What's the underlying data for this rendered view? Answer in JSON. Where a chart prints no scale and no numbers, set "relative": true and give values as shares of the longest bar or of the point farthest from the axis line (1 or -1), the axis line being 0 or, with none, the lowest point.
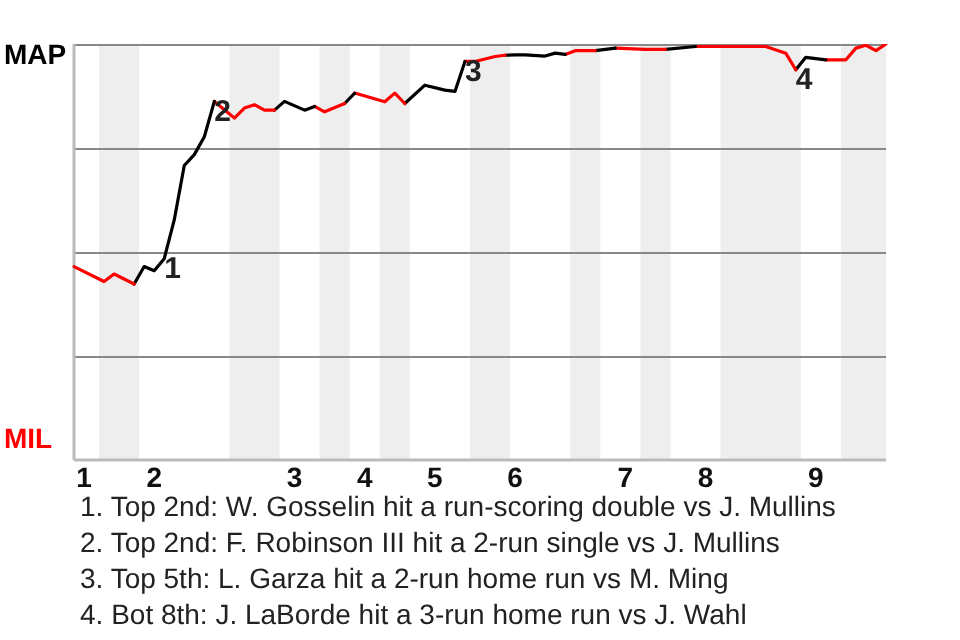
{
  "chart_data": {
    "type": "line",
    "relative": true,
    "categories": [
      null,
      "1",
      null,
      null,
      null,
      null,
      null,
      null,
      "2",
      null,
      null,
      null,
      null,
      null,
      null,
      null,
      null,
      null,
      null,
      null,
      null,
      null,
      "3",
      null,
      null,
      null,
      null,
      null,
      null,
      "4",
      null,
      null,
      null,
      null,
      null,
      null,
      "5",
      null,
      null,
      null,
      null,
      null,
      null,
      null,
      "6",
      null,
      null,
      null,
      null,
      null,
      null,
      null,
      null,
      null,
      null,
      "7",
      null,
      null,
      null,
      null,
      null,
      null,
      null,
      "8",
      null,
      null,
      null,
      null,
      null,
      null,
      null,
      null,
      null,
      null,
      "9",
      null,
      null,
      null,
      null,
      null,
      null,
      null
    ],
    "series": [
      {
        "color": "#ff0000",
        "values": [
          0.465,
          null,
          null,
          0.429,
          0.447,
          null,
          0.423,
          null,
          null,
          null,
          null,
          null,
          null,
          null,
          null,
          null,
          null,
          null,
          null,
          null,
          null,
          null,
          null,
          null,
          null,
          null,
          null,
          null,
          null,
          null,
          null,
          null,
          null,
          null,
          null,
          null,
          null,
          null,
          null,
          null,
          null,
          null,
          null,
          null,
          null,
          null,
          null,
          null,
          null,
          null,
          null,
          null,
          null,
          null,
          null,
          null,
          null,
          null,
          null,
          null,
          null,
          null,
          null,
          null,
          null,
          null,
          null,
          null,
          null,
          null,
          null,
          null,
          null,
          null,
          null,
          null,
          null,
          null,
          null,
          null,
          null,
          null
        ]
      },
      {
        "color": "#000000",
        "values": [
          null,
          null,
          null,
          null,
          null,
          null,
          0.423,
          0.465,
          0.455,
          0.484,
          0.577,
          0.708,
          0.734,
          0.777,
          0.862,
          null,
          null,
          null,
          null,
          null,
          null,
          null,
          null,
          null,
          null,
          null,
          null,
          null,
          null,
          null,
          null,
          null,
          null,
          null,
          null,
          null,
          null,
          null,
          null,
          null,
          null,
          null,
          null,
          null,
          null,
          null,
          null,
          null,
          null,
          null,
          null,
          null,
          null,
          null,
          null,
          null,
          null,
          null,
          null,
          null,
          null,
          null,
          null,
          null,
          null,
          null,
          null,
          null,
          null,
          null,
          null,
          null,
          null,
          null,
          null,
          null,
          null,
          null,
          null,
          null,
          null,
          null
        ]
      },
      {
        "color": "#ff0000",
        "values": [
          null,
          null,
          null,
          null,
          null,
          null,
          null,
          null,
          null,
          null,
          null,
          null,
          null,
          null,
          0.862,
          null,
          0.822,
          0.846,
          0.854,
          0.841,
          0.841,
          null,
          null,
          null,
          null,
          null,
          null,
          null,
          null,
          null,
          null,
          null,
          null,
          null,
          null,
          null,
          null,
          null,
          null,
          null,
          null,
          null,
          null,
          null,
          null,
          null,
          null,
          null,
          null,
          null,
          null,
          null,
          null,
          null,
          null,
          null,
          null,
          null,
          null,
          null,
          null,
          null,
          null,
          null,
          null,
          null,
          null,
          null,
          null,
          null,
          null,
          null,
          null,
          null,
          null,
          null,
          null,
          null,
          null,
          null,
          null,
          null
        ]
      },
      {
        "color": "#000000",
        "values": [
          null,
          null,
          null,
          null,
          null,
          null,
          null,
          null,
          null,
          null,
          null,
          null,
          null,
          null,
          null,
          null,
          null,
          null,
          null,
          null,
          0.841,
          0.862,
          null,
          0.841,
          0.85,
          null,
          null,
          null,
          null,
          null,
          null,
          null,
          null,
          null,
          null,
          null,
          null,
          null,
          null,
          null,
          null,
          null,
          null,
          null,
          null,
          null,
          null,
          null,
          null,
          null,
          null,
          null,
          null,
          null,
          null,
          null,
          null,
          null,
          null,
          null,
          null,
          null,
          null,
          null,
          null,
          null,
          null,
          null,
          null,
          null,
          null,
          null,
          null,
          null,
          null,
          null,
          null,
          null,
          null,
          null,
          null,
          null
        ]
      },
      {
        "color": "#ff0000",
        "values": [
          null,
          null,
          null,
          null,
          null,
          null,
          null,
          null,
          null,
          null,
          null,
          null,
          null,
          null,
          null,
          null,
          null,
          null,
          null,
          null,
          null,
          null,
          null,
          null,
          0.85,
          0.837,
          null,
          0.857,
          null,
          null,
          null,
          null,
          null,
          null,
          null,
          null,
          null,
          null,
          null,
          null,
          null,
          null,
          null,
          null,
          null,
          null,
          null,
          null,
          null,
          null,
          null,
          null,
          null,
          null,
          null,
          null,
          null,
          null,
          null,
          null,
          null,
          null,
          null,
          null,
          null,
          null,
          null,
          null,
          null,
          null,
          null,
          null,
          null,
          null,
          null,
          null,
          null,
          null,
          null,
          null,
          null,
          null
        ]
      },
      {
        "color": "#000000",
        "values": [
          null,
          null,
          null,
          null,
          null,
          null,
          null,
          null,
          null,
          null,
          null,
          null,
          null,
          null,
          null,
          null,
          null,
          null,
          null,
          null,
          null,
          null,
          null,
          null,
          null,
          null,
          null,
          0.857,
          0.882,
          null,
          null,
          null,
          null,
          null,
          null,
          null,
          null,
          null,
          null,
          null,
          null,
          null,
          null,
          null,
          null,
          null,
          null,
          null,
          null,
          null,
          null,
          null,
          null,
          null,
          null,
          null,
          null,
          null,
          null,
          null,
          null,
          null,
          null,
          null,
          null,
          null,
          null,
          null,
          null,
          null,
          null,
          null,
          null,
          null,
          null,
          null,
          null,
          null,
          null,
          null,
          null,
          null
        ]
      },
      {
        "color": "#ff0000",
        "values": [
          null,
          null,
          null,
          null,
          null,
          null,
          null,
          null,
          null,
          null,
          null,
          null,
          null,
          null,
          null,
          null,
          null,
          null,
          null,
          null,
          null,
          null,
          null,
          null,
          null,
          null,
          null,
          null,
          0.882,
          null,
          null,
          0.861,
          0.882,
          0.857,
          null,
          null,
          null,
          null,
          null,
          null,
          null,
          null,
          null,
          null,
          null,
          null,
          null,
          null,
          null,
          null,
          null,
          null,
          null,
          null,
          null,
          null,
          null,
          null,
          null,
          null,
          null,
          null,
          null,
          null,
          null,
          null,
          null,
          null,
          null,
          null,
          null,
          null,
          null,
          null,
          null,
          null,
          null,
          null,
          null,
          null,
          null,
          null
        ]
      },
      {
        "color": "#000000",
        "values": [
          null,
          null,
          null,
          null,
          null,
          null,
          null,
          null,
          null,
          null,
          null,
          null,
          null,
          null,
          null,
          null,
          null,
          null,
          null,
          null,
          null,
          null,
          null,
          null,
          null,
          null,
          null,
          null,
          null,
          null,
          null,
          null,
          null,
          0.857,
          null,
          0.901,
          null,
          0.889,
          0.886,
          0.958,
          null,
          null,
          null,
          null,
          null,
          null,
          null,
          null,
          null,
          null,
          null,
          null,
          null,
          null,
          null,
          null,
          null,
          null,
          null,
          null,
          null,
          null,
          null,
          null,
          null,
          null,
          null,
          null,
          null,
          null,
          null,
          null,
          null,
          null,
          null,
          null,
          null,
          null,
          null,
          null,
          null,
          null
        ]
      },
      {
        "color": "#ff0000",
        "values": [
          null,
          null,
          null,
          null,
          null,
          null,
          null,
          null,
          null,
          null,
          null,
          null,
          null,
          null,
          null,
          null,
          null,
          null,
          null,
          null,
          null,
          null,
          null,
          null,
          null,
          null,
          null,
          null,
          null,
          null,
          null,
          null,
          null,
          null,
          null,
          null,
          null,
          null,
          null,
          0.958,
          0.958,
          null,
          0.97,
          0.973,
          null,
          null,
          null,
          null,
          null,
          null,
          null,
          null,
          null,
          null,
          null,
          null,
          null,
          null,
          null,
          null,
          null,
          null,
          null,
          null,
          null,
          null,
          null,
          null,
          null,
          null,
          null,
          null,
          null,
          null,
          null,
          null,
          null,
          null,
          null,
          null,
          null,
          null
        ]
      },
      {
        "color": "#000000",
        "values": [
          null,
          null,
          null,
          null,
          null,
          null,
          null,
          null,
          null,
          null,
          null,
          null,
          null,
          null,
          null,
          null,
          null,
          null,
          null,
          null,
          null,
          null,
          null,
          null,
          null,
          null,
          null,
          null,
          null,
          null,
          null,
          null,
          null,
          null,
          null,
          null,
          null,
          null,
          null,
          null,
          null,
          null,
          null,
          0.973,
          0.974,
          0.974,
          null,
          0.971,
          0.978,
          0.975,
          null,
          null,
          null,
          null,
          null,
          null,
          null,
          null,
          null,
          null,
          null,
          null,
          null,
          null,
          null,
          null,
          null,
          null,
          null,
          null,
          null,
          null,
          null,
          null,
          null,
          null,
          null,
          null,
          null,
          null,
          null,
          null
        ]
      },
      {
        "color": "#ff0000",
        "values": [
          null,
          null,
          null,
          null,
          null,
          null,
          null,
          null,
          null,
          null,
          null,
          null,
          null,
          null,
          null,
          null,
          null,
          null,
          null,
          null,
          null,
          null,
          null,
          null,
          null,
          null,
          null,
          null,
          null,
          null,
          null,
          null,
          null,
          null,
          null,
          null,
          null,
          null,
          null,
          null,
          null,
          null,
          null,
          null,
          null,
          null,
          null,
          null,
          null,
          0.975,
          0.984,
          null,
          0.984,
          null,
          null,
          null,
          null,
          null,
          null,
          null,
          null,
          null,
          null,
          null,
          null,
          null,
          null,
          null,
          null,
          null,
          null,
          null,
          null,
          null,
          null,
          null,
          null,
          null,
          null,
          null,
          null,
          null
        ]
      },
      {
        "color": "#000000",
        "values": [
          null,
          null,
          null,
          null,
          null,
          null,
          null,
          null,
          null,
          null,
          null,
          null,
          null,
          null,
          null,
          null,
          null,
          null,
          null,
          null,
          null,
          null,
          null,
          null,
          null,
          null,
          null,
          null,
          null,
          null,
          null,
          null,
          null,
          null,
          null,
          null,
          null,
          null,
          null,
          null,
          null,
          null,
          null,
          null,
          null,
          null,
          null,
          null,
          null,
          null,
          null,
          null,
          0.984,
          null,
          0.99,
          null,
          null,
          null,
          null,
          null,
          null,
          null,
          null,
          null,
          null,
          null,
          null,
          null,
          null,
          null,
          null,
          null,
          null,
          null,
          null,
          null,
          null,
          null,
          null,
          null,
          null,
          null
        ]
      },
      {
        "color": "#ff0000",
        "values": [
          null,
          null,
          null,
          null,
          null,
          null,
          null,
          null,
          null,
          null,
          null,
          null,
          null,
          null,
          null,
          null,
          null,
          null,
          null,
          null,
          null,
          null,
          null,
          null,
          null,
          null,
          null,
          null,
          null,
          null,
          null,
          null,
          null,
          null,
          null,
          null,
          null,
          null,
          null,
          null,
          null,
          null,
          null,
          null,
          null,
          null,
          null,
          null,
          null,
          null,
          null,
          null,
          null,
          null,
          0.99,
          null,
          null,
          0.987,
          null,
          0.987,
          null,
          null,
          null,
          null,
          null,
          null,
          null,
          null,
          null,
          null,
          null,
          null,
          null,
          null,
          null,
          null,
          null,
          null,
          null,
          null,
          null,
          null
        ]
      },
      {
        "color": "#000000",
        "values": [
          null,
          null,
          null,
          null,
          null,
          null,
          null,
          null,
          null,
          null,
          null,
          null,
          null,
          null,
          null,
          null,
          null,
          null,
          null,
          null,
          null,
          null,
          null,
          null,
          null,
          null,
          null,
          null,
          null,
          null,
          null,
          null,
          null,
          null,
          null,
          null,
          null,
          null,
          null,
          null,
          null,
          null,
          null,
          null,
          null,
          null,
          null,
          null,
          null,
          null,
          null,
          null,
          null,
          null,
          null,
          null,
          null,
          null,
          null,
          0.987,
          null,
          null,
          0.994,
          null,
          null,
          null,
          null,
          null,
          null,
          null,
          null,
          null,
          null,
          null,
          null,
          null,
          null,
          null,
          null,
          null,
          null,
          null
        ]
      },
      {
        "color": "#ff0000",
        "values": [
          null,
          null,
          null,
          null,
          null,
          null,
          null,
          null,
          null,
          null,
          null,
          null,
          null,
          null,
          null,
          null,
          null,
          null,
          null,
          null,
          null,
          null,
          null,
          null,
          null,
          null,
          null,
          null,
          null,
          null,
          null,
          null,
          null,
          null,
          null,
          null,
          null,
          null,
          null,
          null,
          null,
          null,
          null,
          null,
          null,
          null,
          null,
          null,
          null,
          null,
          null,
          null,
          null,
          null,
          null,
          null,
          null,
          null,
          null,
          null,
          null,
          null,
          0.994,
          null,
          null,
          0.994,
          null,
          null,
          null,
          0.994,
          null,
          0.978,
          0.938,
          null,
          null,
          null,
          null,
          null,
          null,
          null,
          null,
          null
        ]
      },
      {
        "color": "#000000",
        "values": [
          null,
          null,
          null,
          null,
          null,
          null,
          null,
          null,
          null,
          null,
          null,
          null,
          null,
          null,
          null,
          null,
          null,
          null,
          null,
          null,
          null,
          null,
          null,
          null,
          null,
          null,
          null,
          null,
          null,
          null,
          null,
          null,
          null,
          null,
          null,
          null,
          null,
          null,
          null,
          null,
          null,
          null,
          null,
          null,
          null,
          null,
          null,
          null,
          null,
          null,
          null,
          null,
          null,
          null,
          null,
          null,
          null,
          null,
          null,
          null,
          null,
          null,
          null,
          null,
          null,
          null,
          null,
          null,
          null,
          null,
          null,
          null,
          0.938,
          0.968,
          null,
          0.962,
          null,
          null,
          null,
          null,
          null,
          null
        ]
      },
      {
        "color": "#ff0000",
        "values": [
          null,
          null,
          null,
          null,
          null,
          null,
          null,
          null,
          null,
          null,
          null,
          null,
          null,
          null,
          null,
          null,
          null,
          null,
          null,
          null,
          null,
          null,
          null,
          null,
          null,
          null,
          null,
          null,
          null,
          null,
          null,
          null,
          null,
          null,
          null,
          null,
          null,
          null,
          null,
          null,
          null,
          null,
          null,
          null,
          null,
          null,
          null,
          null,
          null,
          null,
          null,
          null,
          null,
          null,
          null,
          null,
          null,
          null,
          null,
          null,
          null,
          null,
          null,
          null,
          null,
          null,
          null,
          null,
          null,
          null,
          null,
          null,
          null,
          null,
          null,
          0.962,
          null,
          0.962,
          0.99,
          0.997,
          0.984,
          1
        ]
      }
    ],
    "grid": "y",
    "legend": false,
    "marker": "none",
    "line_style": "solid",
    "annotations": [
      "MAP",
      "MIL",
      {
        "text": "1",
        "y": 0.484
      },
      {
        "text": "2",
        "y": 0.862
      },
      {
        "text": "3",
        "y": 0.958
      },
      {
        "text": "4",
        "y": 0.938
      },
      "1. Top 2nd: W. Gosselin hit a run-scoring double vs J. Mullins",
      "2. Top 2nd: F. Robinson III hit a 2-run single vs J. Mullins",
      "3. Top 5th: L. Garza hit a 2-run home run vs M. Ming",
      "4. Bot 8th: J. LaBorde hit a 3-run home run vs J. Wahl"
    ]
  }
}
